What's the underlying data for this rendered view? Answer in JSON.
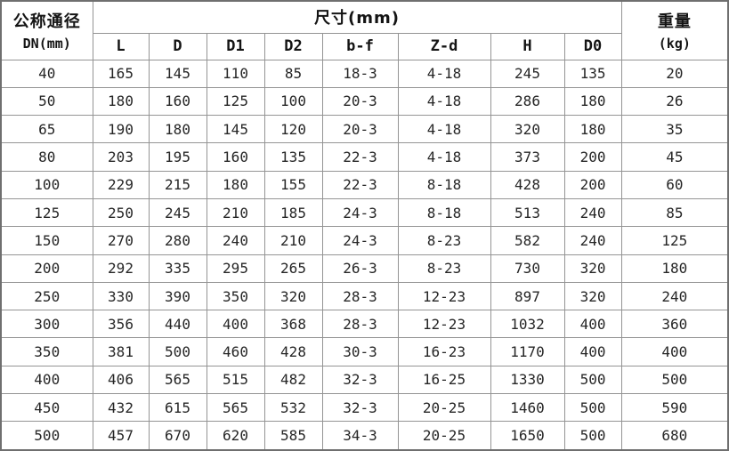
{
  "colors": {
    "background": "#ffffff",
    "border_inner": "#949494",
    "border_outer": "#6f6f6f",
    "text": "#262626"
  },
  "chart_data": {
    "type": "table",
    "title": "",
    "dn_header": [
      "公称通径",
      "DN(mm)"
    ],
    "size_group_header": "尺寸(mm)",
    "weight_header": [
      "重量",
      "(kg)"
    ],
    "sub_columns": [
      "L",
      "D",
      "D1",
      "D2",
      "b-f",
      "Z-d",
      "H",
      "D0"
    ],
    "rows": [
      [
        "40",
        "165",
        "145",
        "110",
        "85",
        "18-3",
        "4-18",
        "245",
        "135",
        "20"
      ],
      [
        "50",
        "180",
        "160",
        "125",
        "100",
        "20-3",
        "4-18",
        "286",
        "180",
        "26"
      ],
      [
        "65",
        "190",
        "180",
        "145",
        "120",
        "20-3",
        "4-18",
        "320",
        "180",
        "35"
      ],
      [
        "80",
        "203",
        "195",
        "160",
        "135",
        "22-3",
        "4-18",
        "373",
        "200",
        "45"
      ],
      [
        "100",
        "229",
        "215",
        "180",
        "155",
        "22-3",
        "8-18",
        "428",
        "200",
        "60"
      ],
      [
        "125",
        "250",
        "245",
        "210",
        "185",
        "24-3",
        "8-18",
        "513",
        "240",
        "85"
      ],
      [
        "150",
        "270",
        "280",
        "240",
        "210",
        "24-3",
        "8-23",
        "582",
        "240",
        "125"
      ],
      [
        "200",
        "292",
        "335",
        "295",
        "265",
        "26-3",
        "8-23",
        "730",
        "320",
        "180"
      ],
      [
        "250",
        "330",
        "390",
        "350",
        "320",
        "28-3",
        "12-23",
        "897",
        "320",
        "240"
      ],
      [
        "300",
        "356",
        "440",
        "400",
        "368",
        "28-3",
        "12-23",
        "1032",
        "400",
        "360"
      ],
      [
        "350",
        "381",
        "500",
        "460",
        "428",
        "30-3",
        "16-23",
        "1170",
        "400",
        "400"
      ],
      [
        "400",
        "406",
        "565",
        "515",
        "482",
        "32-3",
        "16-25",
        "1330",
        "500",
        "500"
      ],
      [
        "450",
        "432",
        "615",
        "565",
        "532",
        "32-3",
        "20-25",
        "1460",
        "500",
        "590"
      ],
      [
        "500",
        "457",
        "670",
        "620",
        "585",
        "34-3",
        "20-25",
        "1650",
        "500",
        "680"
      ]
    ]
  }
}
